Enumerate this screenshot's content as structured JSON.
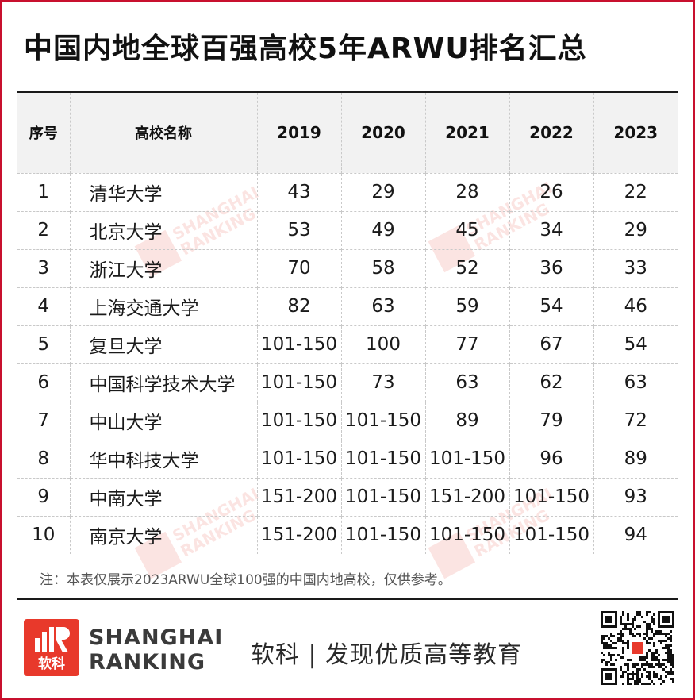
{
  "title": "中国内地全球百强高校5年ARWU排名汇总",
  "table": {
    "headers": [
      "序号",
      "高校名称",
      "2019",
      "2020",
      "2021",
      "2022",
      "2023"
    ],
    "rows": [
      [
        "1",
        "清华大学",
        "43",
        "29",
        "28",
        "26",
        "22"
      ],
      [
        "2",
        "北京大学",
        "53",
        "49",
        "45",
        "34",
        "29"
      ],
      [
        "3",
        "浙江大学",
        "70",
        "58",
        "52",
        "36",
        "33"
      ],
      [
        "4",
        "上海交通大学",
        "82",
        "63",
        "59",
        "54",
        "46"
      ],
      [
        "5",
        "复旦大学",
        "101-150",
        "100",
        "77",
        "67",
        "54"
      ],
      [
        "6",
        "中国科学技术大学",
        "101-150",
        "73",
        "63",
        "62",
        "63"
      ],
      [
        "7",
        "中山大学",
        "101-150",
        "101-150",
        "89",
        "79",
        "72"
      ],
      [
        "8",
        "华中科技大学",
        "101-150",
        "101-150",
        "101-150",
        "96",
        "89"
      ],
      [
        "9",
        "中南大学",
        "151-200",
        "101-150",
        "151-200",
        "101-150",
        "93"
      ],
      [
        "10",
        "南京大学",
        "151-200",
        "101-150",
        "101-150",
        "101-150",
        "94"
      ]
    ]
  },
  "note": "注：本表仅展示2023ARWU全球100强的中国内地高校，仅供参考。",
  "footer": {
    "logo_text": "软科",
    "brand_line1": "SHANGHAI",
    "brand_line2": "RANKING",
    "slogan": "软科 | 发现优质高等教育",
    "qr_icon": "qr-code-icon"
  },
  "watermark": {
    "line1": "SHANGHAI",
    "line2": "RANKING"
  },
  "colors": {
    "brand_red": "#e8392b",
    "frame_red": "#c8102e",
    "header_bg": "#f2f2f2"
  }
}
